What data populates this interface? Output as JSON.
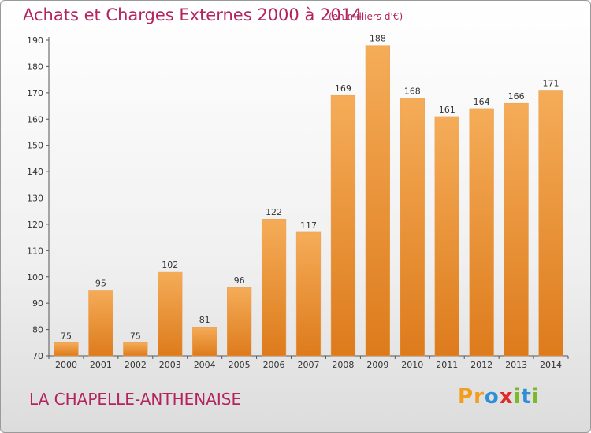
{
  "header": {
    "title": "Achats et Charges Externes 2000 à 2014",
    "subtitle": "(en milliers d'€)"
  },
  "footer": {
    "commune": "LA CHAPELLE-ANTHENAISE",
    "logo_text": "Proxiti",
    "logo_letters": [
      {
        "ch": "P",
        "color": "#f39c1e"
      },
      {
        "ch": "r",
        "color": "#f39c1e"
      },
      {
        "ch": "o",
        "color": "#2e8fd6"
      },
      {
        "ch": "x",
        "color": "#e02b2b"
      },
      {
        "ch": "i",
        "color": "#7ab929"
      },
      {
        "ch": "t",
        "color": "#2e8fd6"
      },
      {
        "ch": "i",
        "color": "#7ab929"
      }
    ]
  },
  "chart_data": {
    "type": "bar",
    "categories": [
      "2000",
      "2001",
      "2002",
      "2003",
      "2004",
      "2005",
      "2006",
      "2007",
      "2008",
      "2009",
      "2010",
      "2011",
      "2012",
      "2013",
      "2014"
    ],
    "values": [
      75,
      95,
      75,
      102,
      81,
      96,
      122,
      117,
      169,
      188,
      168,
      161,
      164,
      166,
      171
    ],
    "ylim": [
      70,
      190
    ],
    "yticks": [
      70,
      80,
      90,
      100,
      110,
      120,
      130,
      140,
      150,
      160,
      170,
      180,
      190
    ],
    "grid": false,
    "bar_color": "#f0a24b",
    "bar_color_dark": "#dd7b1c"
  }
}
